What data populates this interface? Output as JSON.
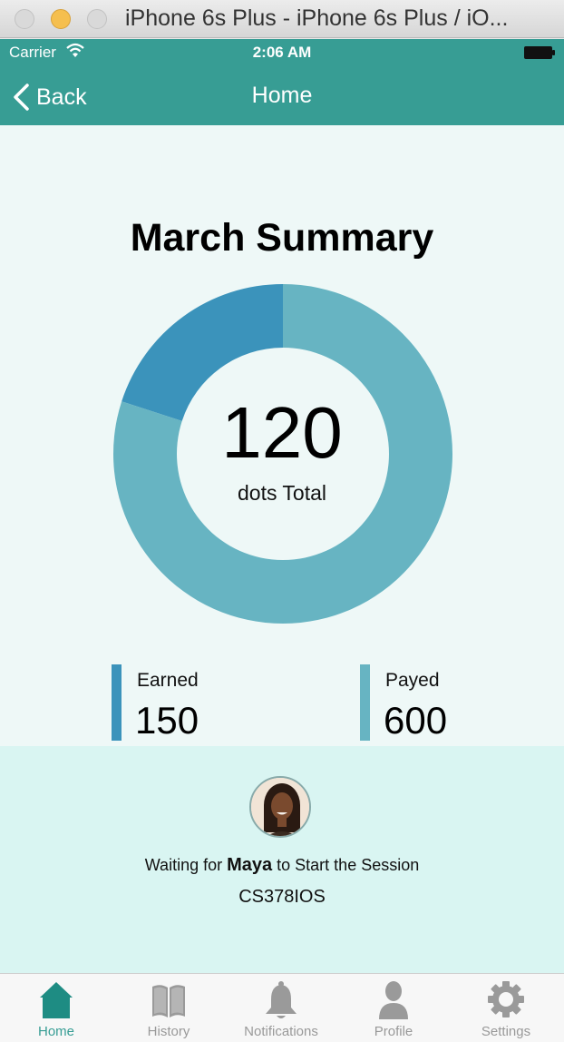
{
  "window": {
    "title": "iPhone 6s Plus - iPhone 6s Plus / iO..."
  },
  "status_bar": {
    "carrier": "Carrier",
    "time": "2:06 AM"
  },
  "nav": {
    "back_label": "Back",
    "title": "Home"
  },
  "summary": {
    "title": "March Summary",
    "total_value": "120",
    "total_label": "dots Total",
    "earned": {
      "label": "Earned",
      "value": "150",
      "color": "#3b93bb"
    },
    "payed": {
      "label": "Payed",
      "value": "600",
      "color": "#67b4c2"
    }
  },
  "chart_data": {
    "type": "pie",
    "donut": true,
    "categories": [
      "Earned",
      "Payed"
    ],
    "values": [
      150,
      600
    ],
    "colors": [
      "#3b93bb",
      "#67b4c2"
    ]
  },
  "session": {
    "waiting_prefix": "Waiting for",
    "teacher_name": "Maya",
    "waiting_suffix": "to Start the Session",
    "code": "CS378IOS"
  },
  "tabs": [
    {
      "label": "Home",
      "icon": "home-icon",
      "active": true
    },
    {
      "label": "History",
      "icon": "book-icon",
      "active": false
    },
    {
      "label": "Notifications",
      "icon": "bell-icon",
      "active": false
    },
    {
      "label": "Profile",
      "icon": "person-icon",
      "active": false
    },
    {
      "label": "Settings",
      "icon": "gear-icon",
      "active": false
    }
  ],
  "colors": {
    "nav": "#379d94",
    "background": "#eef8f7",
    "session_panel": "#d9f5f2",
    "tab_active": "#379d94",
    "tab_inactive": "#999999"
  }
}
